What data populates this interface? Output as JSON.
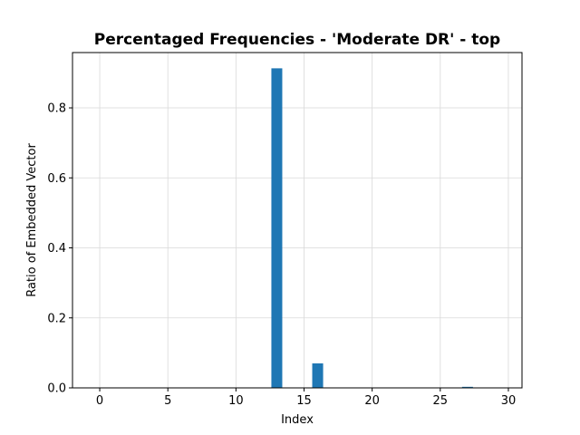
{
  "chart_data": {
    "type": "bar",
    "title": "Percentaged Frequencies - 'Moderate DR' - top",
    "xlabel": "Index",
    "ylabel": "Ratio of Embedded Vector",
    "x": [
      13,
      16,
      27
    ],
    "values": [
      0.913,
      0.07,
      0.003
    ],
    "xlim": [
      -2,
      31
    ],
    "ylim": [
      0,
      0.958
    ],
    "xticks": [
      0,
      5,
      10,
      15,
      20,
      25,
      30
    ],
    "yticks": [
      0.0,
      0.2,
      0.4,
      0.6,
      0.8
    ],
    "ytick_labels": [
      "0.0",
      "0.2",
      "0.4",
      "0.6",
      "0.8"
    ],
    "grid": true,
    "bar_color": "#1f77b4"
  }
}
